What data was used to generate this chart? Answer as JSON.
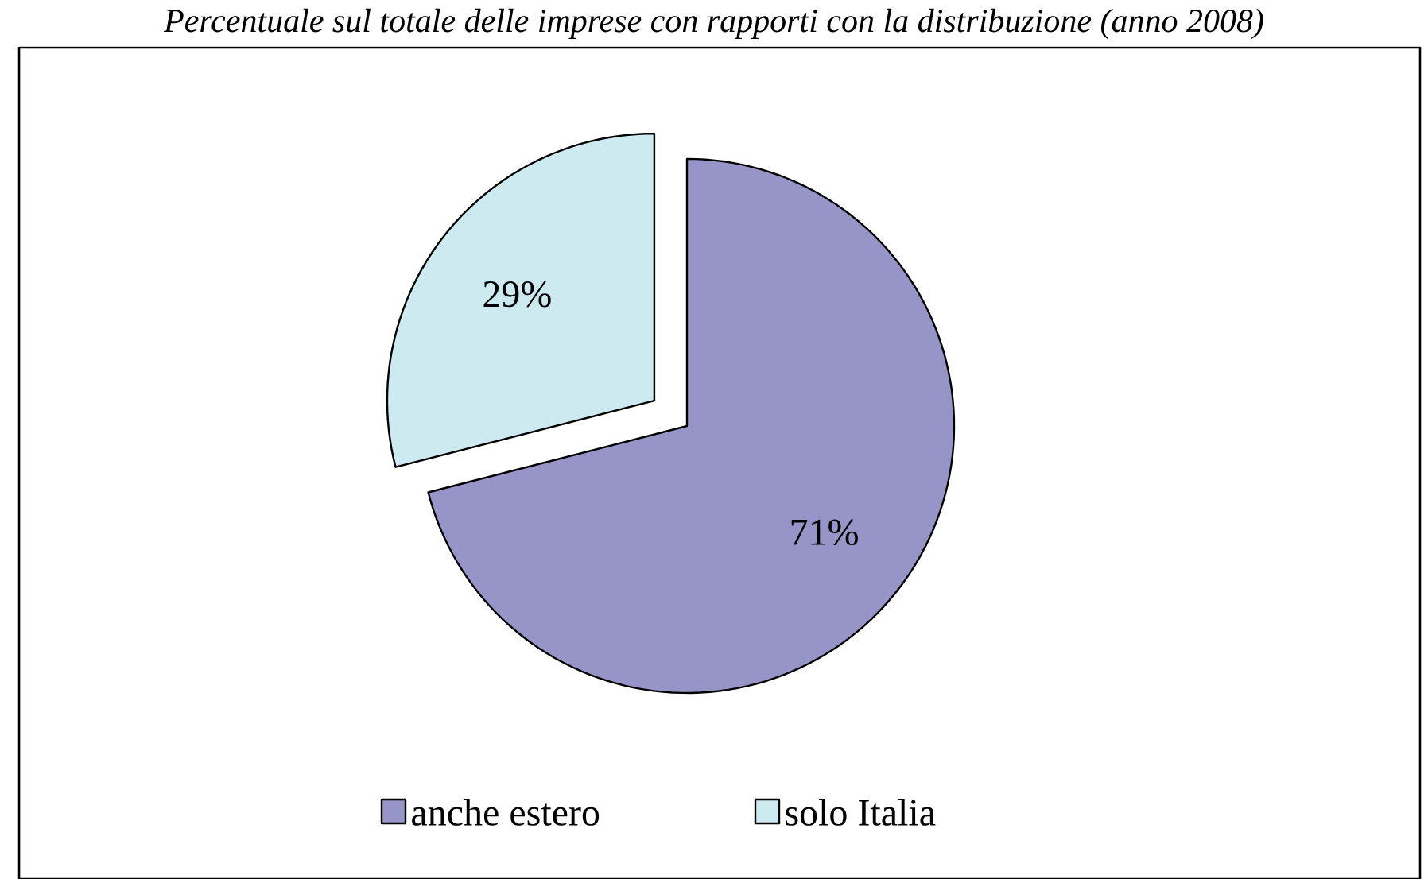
{
  "chart_data": {
    "type": "pie",
    "title": "Percentuale sul totale delle imprese con rapporti con la distribuzione (anno 2008)",
    "categories": [
      "anche estero",
      "solo Italia"
    ],
    "values": [
      71,
      29
    ],
    "colors": [
      "#9794c8",
      "#cdeaf0"
    ],
    "value_labels": [
      "71%",
      "29%"
    ],
    "legend": "bottom"
  }
}
